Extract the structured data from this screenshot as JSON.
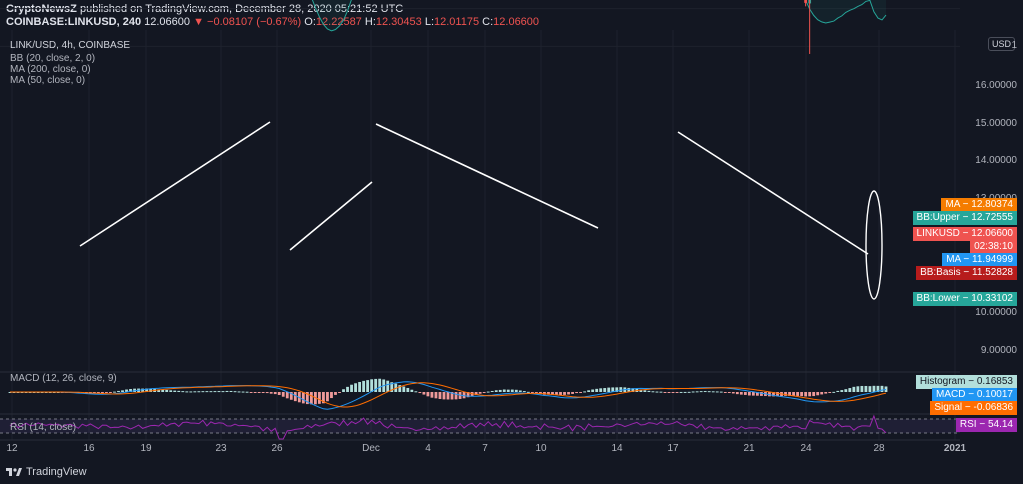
{
  "header": {
    "publisher": "CryptoNewsZ",
    "published_text": "published on TradingView.com, December 28, 2020 05:21:52 UTC",
    "symbol": "COINBASE:LINKUSD, 240",
    "last": "12.06600",
    "change": "▼ −0.08107 (−0.67%)",
    "open_label": "O:",
    "open_value": "12.22587",
    "high_label": "H:",
    "high_value": "12.30453",
    "low_label": "L:",
    "low_value": "12.01175",
    "close_label": "C:",
    "close_value": "12.06600"
  },
  "legends": {
    "main": "LINK/USD, 4h, COINBASE",
    "bb": "BB (20, close, 2, 0)",
    "ma200": "MA (200, close, 0)",
    "ma50": "MA (50, close, 0)",
    "macd": "MACD (12, 26, close, 9)",
    "rsi": "RSI (14, close)"
  },
  "currency_button": "USD",
  "y_axis": [
    "16.00000",
    "15.00000",
    "14.00000",
    "13.00000",
    "10.00000",
    "9.00000"
  ],
  "y_axis_top_partial": "1",
  "x_axis": [
    "12",
    "16",
    "19",
    "23",
    "26",
    "Dec",
    "4",
    "7",
    "10",
    "14",
    "17",
    "21",
    "24",
    "28",
    "2021"
  ],
  "price_tags": [
    {
      "label": "MA",
      "value": "12.80374",
      "color": "#f57c00"
    },
    {
      "label": "BB:Upper",
      "value": "12.72555",
      "color": "#26a69a"
    },
    {
      "label": "LINKUSD",
      "value": "12.06600",
      "color": "#ef5350"
    },
    {
      "label": "",
      "value": "02:38:10",
      "color": "#ef5350"
    },
    {
      "label": "MA",
      "value": "11.94999",
      "color": "#2196f3"
    },
    {
      "label": "BB:Basis",
      "value": "11.52828",
      "color": "#b71c1c"
    },
    {
      "label": "BB:Lower",
      "value": "10.33102",
      "color": "#26a69a"
    }
  ],
  "indicator_tags": [
    {
      "label": "Histogram",
      "value": "0.16853",
      "color": "#b2dfdb",
      "text": "#131722"
    },
    {
      "label": "MACD",
      "value": "0.10017",
      "color": "#2196f3",
      "text": "#ffffff"
    },
    {
      "label": "Signal",
      "value": "-0.06836",
      "color": "#ff6d00",
      "text": "#ffffff"
    },
    {
      "label": "RSI",
      "value": "54.14",
      "color": "#9c27b0",
      "text": "#ffffff"
    }
  ],
  "footer": {
    "brand": "TradingView"
  },
  "colors": {
    "up": "#26a69a",
    "down": "#ef5350",
    "ma200": "#f57c00",
    "ma50": "#2196f3",
    "bb": "#26a69a",
    "basis": "#b71c1c",
    "rsi": "#9c27b0"
  }
}
